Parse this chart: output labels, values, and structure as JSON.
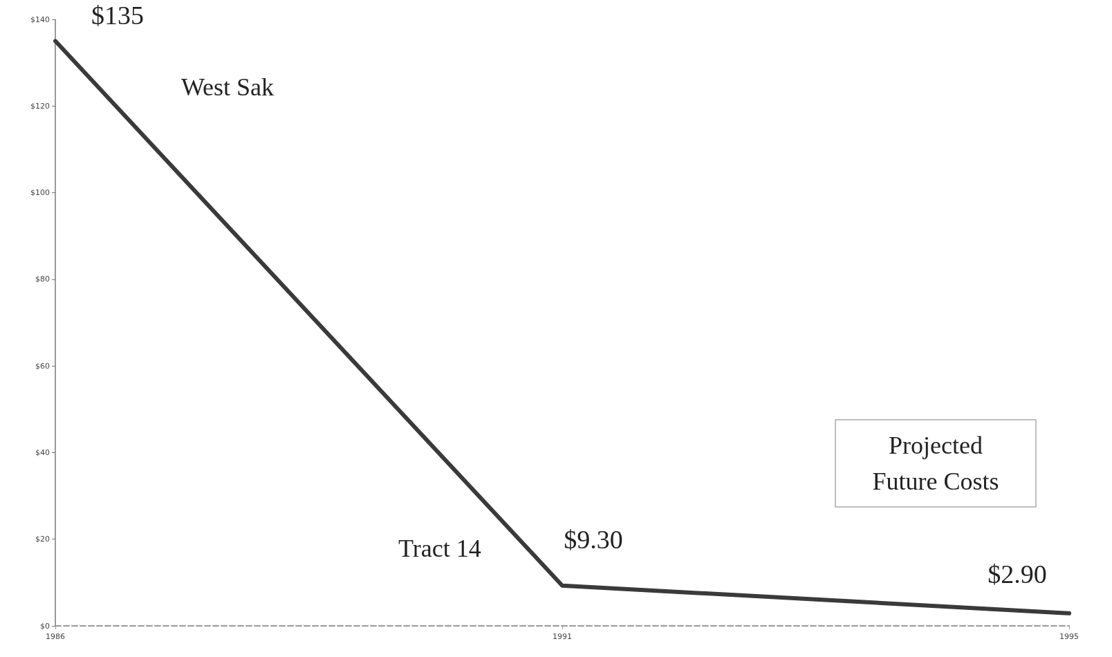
{
  "chart_data": {
    "type": "line",
    "categories": [
      "1986",
      "1991",
      "1995"
    ],
    "series": [
      {
        "color": "#3a3a3a",
        "values": [
          135,
          9.3,
          2.9
        ],
        "value_labels": [
          "$135",
          "$9.30",
          "$2.90"
        ]
      }
    ],
    "ylim": [
      0,
      140
    ],
    "yticks": [
      {
        "value": 0,
        "label": "$0"
      },
      {
        "value": 20,
        "label": "$20"
      },
      {
        "value": 40,
        "label": "$40"
      },
      {
        "value": 60,
        "label": "$60"
      },
      {
        "value": 80,
        "label": "$80"
      },
      {
        "value": 100,
        "label": "$100"
      },
      {
        "value": 120,
        "label": "$120"
      },
      {
        "value": 140,
        "label": "$140"
      }
    ],
    "annotations": [
      "West Sak",
      "Tract 14",
      "Projected\nFuture Costs"
    ],
    "grid": false,
    "marker": "none",
    "line_style": "solid"
  }
}
